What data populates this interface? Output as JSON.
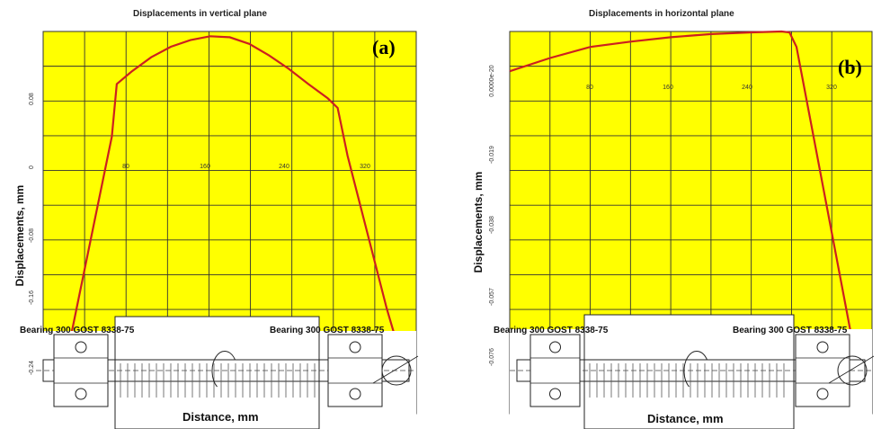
{
  "chart_data": [
    {
      "type": "line",
      "title": "Displacements in vertical plane",
      "panel_tag": "(a)",
      "ylabel": "Displacements, mm",
      "xlabel": "Distance, mm",
      "x_ticks": [
        "80",
        "160",
        "240",
        "320"
      ],
      "y_ticks": [
        "0.08",
        "0",
        "-0.08",
        "-0.16",
        "-0.24"
      ],
      "xlim": [
        -10,
        370
      ],
      "ylim": [
        -0.28,
        0.12
      ],
      "grid": true,
      "background_color": "#ffff00",
      "line_color": "#cc2020",
      "series": [
        {
          "x": [
            0,
            20,
            40,
            60,
            65,
            80,
            100,
            120,
            140,
            160,
            180,
            200,
            220,
            240,
            260,
            280,
            290,
            300,
            320,
            340,
            360
          ],
          "y": [
            -0.28,
            -0.19,
            -0.09,
            0.01,
            0.065,
            0.078,
            0.093,
            0.104,
            0.111,
            0.115,
            0.114,
            0.107,
            0.095,
            0.081,
            0.065,
            0.05,
            0.04,
            -0.01,
            -0.09,
            -0.17,
            -0.24
          ]
        }
      ],
      "bearings": [
        "Bearing 300 GOST 8338-75",
        "Bearing 300 GOST 8338-75"
      ]
    },
    {
      "type": "line",
      "title": "Displacements in horizontal plane",
      "panel_tag": "(b)",
      "ylabel": "Displacements, mm",
      "xlabel": "Distance, mm",
      "x_ticks": [
        "80",
        "160",
        "240",
        "320"
      ],
      "y_ticks": [
        "0.0000e-20",
        "-0.019",
        "-0.038",
        "-0.057",
        "-0.076"
      ],
      "xlim": [
        0,
        360
      ],
      "ylim": [
        -0.083,
        0.0035
      ],
      "grid": true,
      "background_color": "#ffff00",
      "line_color": "#cc2020",
      "series": [
        {
          "x": [
            0,
            40,
            80,
            120,
            160,
            200,
            240,
            270,
            278,
            285,
            300,
            320,
            340,
            355
          ],
          "y": [
            -0.0055,
            -0.0025,
            0.0,
            0.0012,
            0.0022,
            0.0029,
            0.0033,
            0.0035,
            0.0033,
            0.0,
            -0.018,
            -0.042,
            -0.066,
            -0.081
          ]
        }
      ],
      "bearings": [
        "Bearing 300 GOST 8338-75",
        "Bearing 300 GOST 8338-75"
      ]
    }
  ]
}
